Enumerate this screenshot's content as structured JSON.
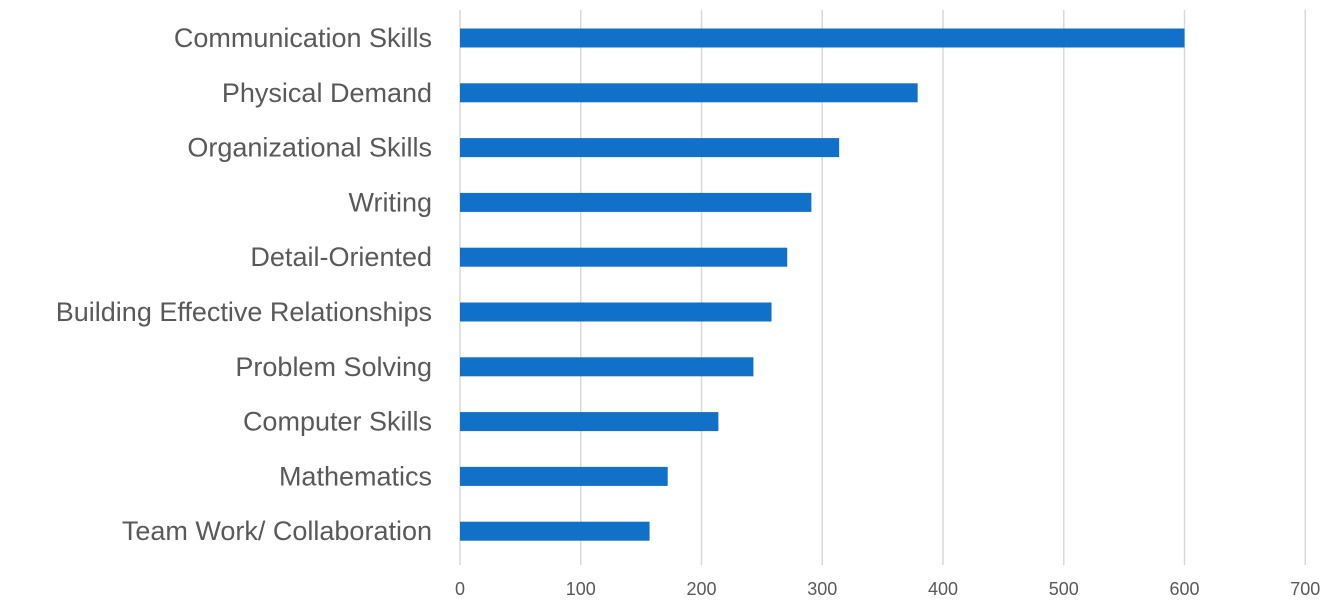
{
  "chart_data": {
    "type": "bar",
    "orientation": "horizontal",
    "title": "",
    "xlabel": "",
    "ylabel": "",
    "categories": [
      "Communication Skills",
      "Physical Demand",
      "Organizational Skills",
      "Writing",
      "Detail-Oriented",
      "Building Effective Relationships",
      "Problem Solving",
      "Computer Skills",
      "Mathematics",
      "Team Work/ Collaboration"
    ],
    "values": [
      600,
      379,
      314,
      291,
      271,
      258,
      243,
      214,
      172,
      157
    ],
    "xlim": [
      0,
      700
    ],
    "xticks": [
      "0",
      "100",
      "200",
      "300",
      "400",
      "500",
      "600",
      "700"
    ],
    "grid": "vertical",
    "legend": "none",
    "bar_color": "#1170c8"
  }
}
